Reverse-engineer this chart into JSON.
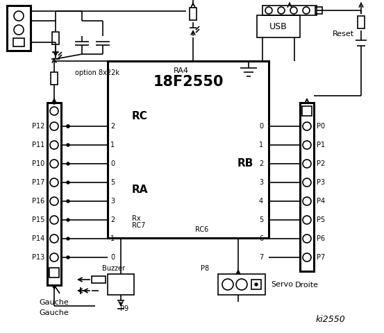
{
  "bg_color": "#ffffff",
  "line_color": "#000000",
  "chip_label": "18F2550",
  "left_pins_labels": [
    "P12",
    "P11",
    "P10",
    "P17",
    "P16",
    "P15",
    "P14",
    "P13"
  ],
  "left_pins_rc": [
    "2",
    "1",
    "0",
    "5",
    "3",
    "2",
    "1",
    "0"
  ],
  "right_pins_labels": [
    "P0",
    "P1",
    "P2",
    "P3",
    "P4",
    "P5",
    "P6",
    "P7"
  ],
  "right_pins_rb": [
    "0",
    "1",
    "2",
    "3",
    "4",
    "5",
    "6",
    "7"
  ]
}
